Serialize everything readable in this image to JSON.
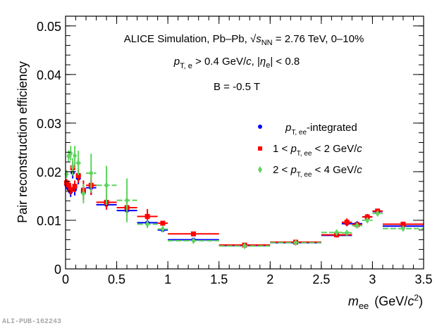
{
  "chart_data": {
    "type": "scatter",
    "title_lines": {
      "line1_prefix": "ALICE Simulation, Pb–Pb, ",
      "line1_sqrt": "s",
      "line1_sqrt_sub": "NN",
      "line1_suffix": " = 2.76 TeV, 0–10%",
      "line2_p": "p",
      "line2_p_sub": "T, e",
      "line2_mid": " > 0.4 GeV/",
      "line2_c": "c",
      "line2_comma": ", |",
      "line2_eta": "η",
      "line2_eta_sub": "e",
      "line2_end": "| < 0.8",
      "line3": "B = -0.5 T"
    },
    "xlabel": {
      "main": "m",
      "sub": "ee",
      "unit_open": "(GeV/",
      "unit_c": "c",
      "unit_sup": "2",
      "unit_close": ")"
    },
    "ylabel": "Pair reconstruction efficiency",
    "xlim": [
      0,
      3.5
    ],
    "ylim": [
      0,
      0.052
    ],
    "xticks": [
      "0",
      "0.5",
      "1",
      "1.5",
      "2",
      "2.5",
      "3",
      "3.5"
    ],
    "yticks": [
      "0",
      "0.01",
      "0.02",
      "0.03",
      "0.04",
      "0.05"
    ],
    "legend_position": "right-middle",
    "series": [
      {
        "name": "pT,ee-integrated",
        "legend": {
          "p": "p",
          "sub": "T, ee",
          "suffix": "-integrated"
        },
        "color": "#0000ff",
        "marker": "circle",
        "points": [
          {
            "x": 0.01,
            "xerr": 0.01,
            "y": 0.0172,
            "yerr": 0.0008
          },
          {
            "x": 0.03,
            "xerr": 0.01,
            "y": 0.0165,
            "yerr": 0.0008
          },
          {
            "x": 0.05,
            "xerr": 0.01,
            "y": 0.0158,
            "yerr": 0.001
          },
          {
            "x": 0.07,
            "xerr": 0.01,
            "y": 0.0198,
            "yerr": 0.0012
          },
          {
            "x": 0.09,
            "xerr": 0.01,
            "y": 0.0163,
            "yerr": 0.0012
          },
          {
            "x": 0.125,
            "xerr": 0.025,
            "y": 0.0186,
            "yerr": 0.0012
          },
          {
            "x": 0.175,
            "xerr": 0.025,
            "y": 0.0158,
            "yerr": 0.0015
          },
          {
            "x": 0.25,
            "xerr": 0.05,
            "y": 0.0167,
            "yerr": 0.0015
          },
          {
            "x": 0.4,
            "xerr": 0.1,
            "y": 0.0132,
            "yerr": 0.001
          },
          {
            "x": 0.6,
            "xerr": 0.1,
            "y": 0.012,
            "yerr": 0.001
          },
          {
            "x": 0.8,
            "xerr": 0.1,
            "y": 0.0095,
            "yerr": 0.0007
          },
          {
            "x": 0.95,
            "xerr": 0.05,
            "y": 0.008,
            "yerr": 0.0004
          },
          {
            "x": 1.25,
            "xerr": 0.25,
            "y": 0.006,
            "yerr": 0.0003
          },
          {
            "x": 1.75,
            "xerr": 0.25,
            "y": 0.0048,
            "yerr": 0.0002
          },
          {
            "x": 2.25,
            "xerr": 0.25,
            "y": 0.0054,
            "yerr": 0.0002
          },
          {
            "x": 2.65,
            "xerr": 0.15,
            "y": 0.0069,
            "yerr": 0.0003
          },
          {
            "x": 2.75,
            "xerr": 0.05,
            "y": 0.0093,
            "yerr": 0.0005
          },
          {
            "x": 2.85,
            "xerr": 0.05,
            "y": 0.0093,
            "yerr": 0.0005
          },
          {
            "x": 2.95,
            "xerr": 0.05,
            "y": 0.0107,
            "yerr": 0.0004
          },
          {
            "x": 3.05,
            "xerr": 0.05,
            "y": 0.0118,
            "yerr": 0.0003
          },
          {
            "x": 3.3,
            "xerr": 0.2,
            "y": 0.0088,
            "yerr": 0.0003
          }
        ]
      },
      {
        "name": "1 < pT,ee < 2 GeV/c",
        "legend": {
          "pre": "1 < ",
          "p": "p",
          "sub": "T, ee",
          "mid": " < 2 GeV/",
          "c": "c"
        },
        "color": "#ff0000",
        "marker": "square",
        "points": [
          {
            "x": 0.01,
            "xerr": 0.01,
            "y": 0.0177,
            "yerr": 0.0008
          },
          {
            "x": 0.03,
            "xerr": 0.01,
            "y": 0.0172,
            "yerr": 0.0008
          },
          {
            "x": 0.05,
            "xerr": 0.01,
            "y": 0.0163,
            "yerr": 0.001
          },
          {
            "x": 0.07,
            "xerr": 0.01,
            "y": 0.0208,
            "yerr": 0.0012
          },
          {
            "x": 0.09,
            "xerr": 0.01,
            "y": 0.017,
            "yerr": 0.0012
          },
          {
            "x": 0.125,
            "xerr": 0.025,
            "y": 0.0192,
            "yerr": 0.0015
          },
          {
            "x": 0.175,
            "xerr": 0.025,
            "y": 0.0162,
            "yerr": 0.002
          },
          {
            "x": 0.25,
            "xerr": 0.05,
            "y": 0.0172,
            "yerr": 0.002
          },
          {
            "x": 0.4,
            "xerr": 0.1,
            "y": 0.0137,
            "yerr": 0.0015
          },
          {
            "x": 0.6,
            "xerr": 0.1,
            "y": 0.0126,
            "yerr": 0.0012
          },
          {
            "x": 0.8,
            "xerr": 0.1,
            "y": 0.0108,
            "yerr": 0.0015
          },
          {
            "x": 0.95,
            "xerr": 0.05,
            "y": 0.0094,
            "yerr": 0.0004
          },
          {
            "x": 1.25,
            "xerr": 0.25,
            "y": 0.0072,
            "yerr": 0.0003
          },
          {
            "x": 1.75,
            "xerr": 0.25,
            "y": 0.0049,
            "yerr": 0.0002
          },
          {
            "x": 2.25,
            "xerr": 0.25,
            "y": 0.0055,
            "yerr": 0.0002
          },
          {
            "x": 2.65,
            "xerr": 0.15,
            "y": 0.007,
            "yerr": 0.0005
          },
          {
            "x": 2.75,
            "xerr": 0.05,
            "y": 0.0096,
            "yerr": 0.0008
          },
          {
            "x": 2.85,
            "xerr": 0.05,
            "y": 0.0091,
            "yerr": 0.0005
          },
          {
            "x": 2.95,
            "xerr": 0.05,
            "y": 0.0107,
            "yerr": 0.0006
          },
          {
            "x": 3.05,
            "xerr": 0.05,
            "y": 0.0119,
            "yerr": 0.0003
          },
          {
            "x": 3.3,
            "xerr": 0.2,
            "y": 0.0092,
            "yerr": 0.0004
          }
        ]
      },
      {
        "name": "2 < pT,ee < 4 GeV/c",
        "legend": {
          "pre": "2 < ",
          "p": "p",
          "sub": "T, ee",
          "mid": " < 4 GeV/",
          "c": "c"
        },
        "color": "#5fd35f",
        "marker": "diamond",
        "points": [
          {
            "x": 0.01,
            "xerr": 0.01,
            "y": 0.0195,
            "yerr": 0.0008
          },
          {
            "x": 0.03,
            "xerr": 0.01,
            "y": 0.0232,
            "yerr": 0.0012
          },
          {
            "x": 0.05,
            "xerr": 0.01,
            "y": 0.0238,
            "yerr": 0.0015
          },
          {
            "x": 0.07,
            "xerr": 0.01,
            "y": 0.021,
            "yerr": 0.0018
          },
          {
            "x": 0.09,
            "xerr": 0.01,
            "y": 0.0233,
            "yerr": 0.002
          },
          {
            "x": 0.125,
            "xerr": 0.025,
            "y": 0.0218,
            "yerr": 0.0025
          },
          {
            "x": 0.175,
            "xerr": 0.025,
            "y": 0.0155,
            "yerr": 0.002
          },
          {
            "x": 0.25,
            "xerr": 0.05,
            "y": 0.0197,
            "yerr": 0.004
          },
          {
            "x": 0.4,
            "xerr": 0.1,
            "y": 0.0172,
            "yerr": 0.004
          },
          {
            "x": 0.6,
            "xerr": 0.1,
            "y": 0.0141,
            "yerr": 0.0045
          },
          {
            "x": 0.8,
            "xerr": 0.1,
            "y": 0.0092,
            "yerr": 0.0008
          },
          {
            "x": 0.95,
            "xerr": 0.05,
            "y": 0.0082,
            "yerr": 0.0005
          },
          {
            "x": 1.25,
            "xerr": 0.25,
            "y": 0.0058,
            "yerr": 0.0004
          },
          {
            "x": 1.75,
            "xerr": 0.25,
            "y": 0.0047,
            "yerr": 0.0003
          },
          {
            "x": 2.25,
            "xerr": 0.25,
            "y": 0.0054,
            "yerr": 0.0003
          },
          {
            "x": 2.65,
            "xerr": 0.15,
            "y": 0.0075,
            "yerr": 0.0005
          },
          {
            "x": 2.75,
            "xerr": 0.05,
            "y": 0.0074,
            "yerr": 0.0004
          },
          {
            "x": 2.85,
            "xerr": 0.05,
            "y": 0.0089,
            "yerr": 0.0005
          },
          {
            "x": 2.95,
            "xerr": 0.05,
            "y": 0.01,
            "yerr": 0.0004
          },
          {
            "x": 3.05,
            "xerr": 0.05,
            "y": 0.0114,
            "yerr": 0.0004
          },
          {
            "x": 3.3,
            "xerr": 0.2,
            "y": 0.0083,
            "yerr": 0.0004
          }
        ]
      }
    ]
  },
  "watermark": "ALI-PUB-162243"
}
